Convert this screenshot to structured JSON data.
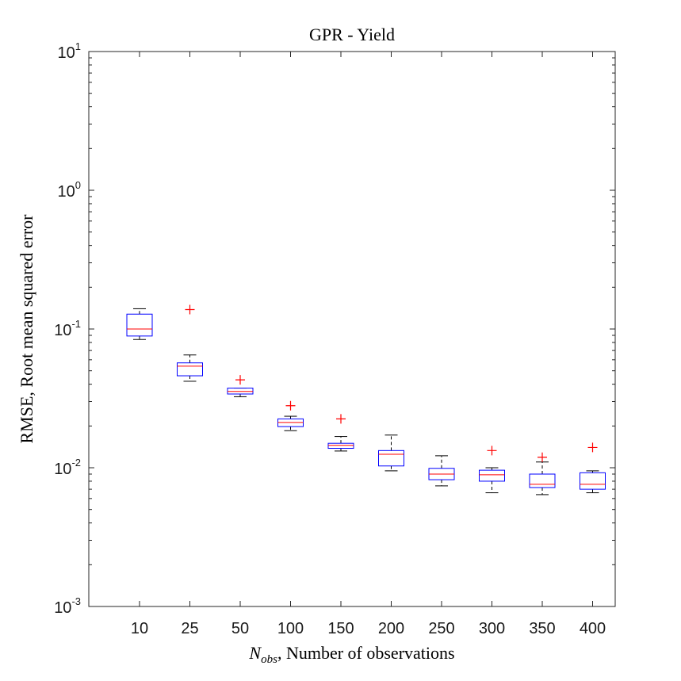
{
  "chart_data": {
    "type": "box",
    "title": "GPR - Yield",
    "xlabel": {
      "symbol": "N",
      "subscript": "obs",
      "text": ", Number of observations"
    },
    "ylabel": "RMSE, Root mean squared error",
    "yscale": "log",
    "ylim": [
      0.001,
      10
    ],
    "yticks": [
      {
        "value": 0.001,
        "base": "10",
        "exp": "-3"
      },
      {
        "value": 0.01,
        "base": "10",
        "exp": "-2"
      },
      {
        "value": 0.1,
        "base": "10",
        "exp": "-1"
      },
      {
        "value": 1,
        "base": "10",
        "exp": "0"
      },
      {
        "value": 10,
        "base": "10",
        "exp": "1"
      }
    ],
    "categories": [
      "10",
      "25",
      "50",
      "100",
      "150",
      "200",
      "250",
      "300",
      "350",
      "400"
    ],
    "boxes": [
      {
        "whisker_low": 0.084,
        "q1": 0.089,
        "median": 0.1,
        "q3": 0.128,
        "whisker_high": 0.14,
        "outliers": []
      },
      {
        "whisker_low": 0.042,
        "q1": 0.046,
        "median": 0.054,
        "q3": 0.057,
        "whisker_high": 0.065,
        "outliers": [
          0.138
        ]
      },
      {
        "whisker_low": 0.0325,
        "q1": 0.034,
        "median": 0.0355,
        "q3": 0.0375,
        "whisker_high": 0.0375,
        "outliers": [
          0.043
        ]
      },
      {
        "whisker_low": 0.0185,
        "q1": 0.0198,
        "median": 0.0212,
        "q3": 0.0225,
        "whisker_high": 0.0235,
        "outliers": [
          0.028
        ]
      },
      {
        "whisker_low": 0.0132,
        "q1": 0.0138,
        "median": 0.0145,
        "q3": 0.015,
        "whisker_high": 0.0168,
        "outliers": [
          0.0225
        ]
      },
      {
        "whisker_low": 0.0095,
        "q1": 0.0103,
        "median": 0.0125,
        "q3": 0.0133,
        "whisker_high": 0.0172,
        "outliers": []
      },
      {
        "whisker_low": 0.0074,
        "q1": 0.0082,
        "median": 0.009,
        "q3": 0.0099,
        "whisker_high": 0.0122,
        "outliers": []
      },
      {
        "whisker_low": 0.0066,
        "q1": 0.008,
        "median": 0.0089,
        "q3": 0.0096,
        "whisker_high": 0.01,
        "outliers": [
          0.0133
        ]
      },
      {
        "whisker_low": 0.0064,
        "q1": 0.0072,
        "median": 0.0076,
        "q3": 0.009,
        "whisker_high": 0.011,
        "outliers": [
          0.0119
        ]
      },
      {
        "whisker_low": 0.0066,
        "q1": 0.007,
        "median": 0.0076,
        "q3": 0.0092,
        "whisker_high": 0.0095,
        "outliers": [
          0.014
        ]
      }
    ],
    "grid": false,
    "colors": {
      "box": "#0000ff",
      "median": "#ff0000",
      "whisker": "#000000",
      "outlier": "#ff0000",
      "axes": "#262626"
    }
  }
}
